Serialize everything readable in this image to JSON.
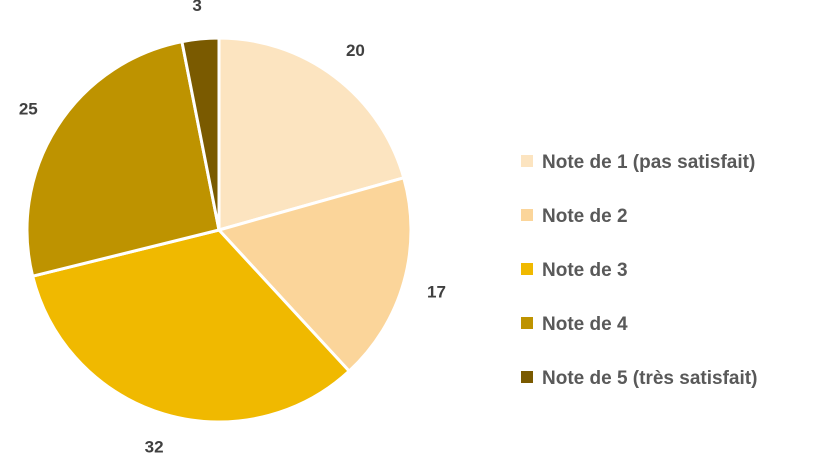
{
  "chart_data": {
    "type": "pie",
    "title": "",
    "categories": [
      "Note de 1 (pas satisfait)",
      "Note de 2",
      "Note de 3",
      "Note de 4",
      "Note de 5 (très satisfait)"
    ],
    "values": [
      20,
      17,
      32,
      25,
      3
    ],
    "data_labels": [
      "20",
      "17",
      "32",
      "25",
      "3"
    ],
    "colors": [
      "#FCE4C0",
      "#FBD59A",
      "#F0B900",
      "#BE9300",
      "#7A5A00"
    ],
    "slice_border_color": "#FFFFFF",
    "start_angle": "12 o'clock",
    "direction": "clockwise",
    "legend_position": "right"
  }
}
